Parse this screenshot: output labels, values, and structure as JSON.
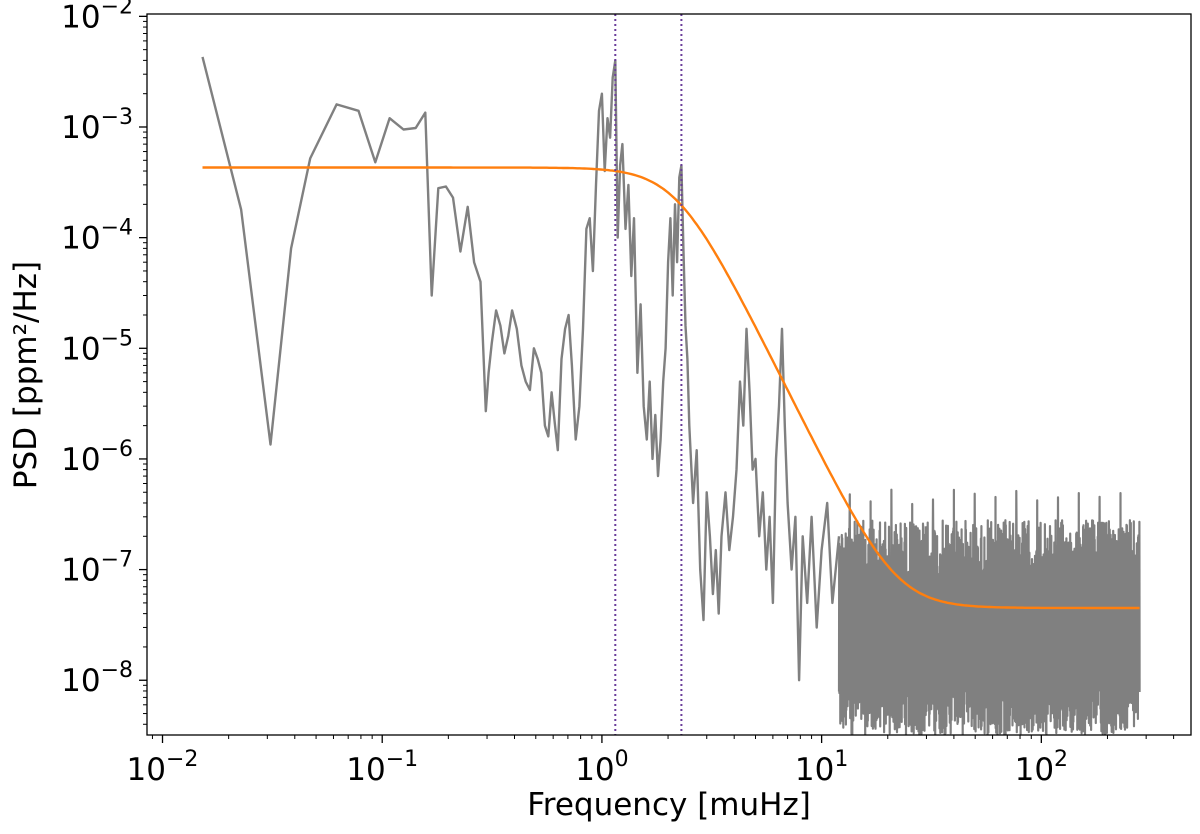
{
  "chart_data": {
    "type": "line",
    "x_scale": "log",
    "y_scale": "log",
    "xlabel": "Frequency [muHz]",
    "ylabel": "PSD [ppm²/Hz]",
    "xlim": [
      0.0085,
      480
    ],
    "ylim": [
      3.2e-09,
      0.0105
    ],
    "x_ticks": [
      {
        "value": 0.01,
        "base": "10",
        "exp": "−2"
      },
      {
        "value": 0.1,
        "base": "10",
        "exp": "−1"
      },
      {
        "value": 1,
        "base": "10",
        "exp": "0"
      },
      {
        "value": 10,
        "base": "10",
        "exp": "1"
      },
      {
        "value": 100,
        "base": "10",
        "exp": "2"
      }
    ],
    "y_ticks": [
      {
        "value": 1e-08,
        "base": "10",
        "exp": "−8"
      },
      {
        "value": 1e-07,
        "base": "10",
        "exp": "−7"
      },
      {
        "value": 1e-06,
        "base": "10",
        "exp": "−6"
      },
      {
        "value": 1e-05,
        "base": "10",
        "exp": "−5"
      },
      {
        "value": 0.0001,
        "base": "10",
        "exp": "−4"
      },
      {
        "value": 0.001,
        "base": "10",
        "exp": "−3"
      },
      {
        "value": 0.01,
        "base": "10",
        "exp": "−2"
      }
    ],
    "grid": false,
    "legend": "none",
    "colors": {
      "psd": "#808080",
      "fit": "#ff7f0e",
      "markers": "#6a3d9a"
    },
    "series": [
      {
        "kind": "psd",
        "x": [
          0.0152,
          0.0228,
          0.031,
          0.0385,
          0.047,
          0.062,
          0.078,
          0.093,
          0.108,
          0.125,
          0.142,
          0.157,
          0.168,
          0.18,
          0.195,
          0.21,
          0.227,
          0.245,
          0.262,
          0.28,
          0.296,
          0.305,
          0.315,
          0.33,
          0.345,
          0.36,
          0.375,
          0.39,
          0.41,
          0.43,
          0.45,
          0.47,
          0.49,
          0.51,
          0.53,
          0.55,
          0.57,
          0.59,
          0.61,
          0.63,
          0.655,
          0.68,
          0.705,
          0.73,
          0.76,
          0.79,
          0.82,
          0.85,
          0.88,
          0.91,
          0.94,
          0.97,
          1.0,
          1.03,
          1.06,
          1.09,
          1.12,
          1.15,
          1.18,
          1.21,
          1.24,
          1.28,
          1.32,
          1.36,
          1.4,
          1.45,
          1.5,
          1.55,
          1.6,
          1.65,
          1.7,
          1.75,
          1.8,
          1.85,
          1.9,
          1.95,
          2.0,
          2.05,
          2.1,
          2.15,
          2.2,
          2.25,
          2.3,
          2.35,
          2.4,
          2.45,
          2.5,
          2.6,
          2.7,
          2.8,
          2.9,
          3.0,
          3.1,
          3.2,
          3.3,
          3.4,
          3.5,
          3.65,
          3.8,
          3.95,
          4.1,
          4.25,
          4.4,
          4.55,
          4.7,
          4.85,
          5.0,
          5.2,
          5.4,
          5.6,
          5.8,
          6.0,
          6.2,
          6.4,
          6.6,
          6.8,
          7.0,
          7.3,
          7.6,
          7.9,
          8.2,
          8.6,
          9.0,
          9.5,
          10.0,
          10.6,
          11.2,
          12.0
        ],
        "y": [
          0.0043,
          0.00018,
          1.35e-06,
          8e-05,
          0.00052,
          0.0016,
          0.0014,
          0.00048,
          0.0012,
          0.00095,
          0.00098,
          0.00135,
          3e-05,
          0.00028,
          0.00029,
          0.00023,
          7.5e-05,
          0.00019,
          6e-05,
          4e-05,
          2.7e-06,
          6e-06,
          1.1e-05,
          2.2e-05,
          1.6e-05,
          9e-06,
          1.3e-05,
          2.2e-05,
          1.5e-05,
          7e-06,
          5e-06,
          4.2e-06,
          1e-05,
          8e-06,
          6e-06,
          2e-06,
          1.6e-06,
          4e-06,
          2.1e-06,
          1.2e-06,
          8e-06,
          1.5e-05,
          2e-05,
          7e-06,
          1.5e-06,
          3e-06,
          1.5e-05,
          0.00012,
          0.00015,
          5e-05,
          0.0003,
          0.0014,
          0.002,
          0.0004,
          0.0012,
          0.0008,
          0.0028,
          0.004,
          0.0001,
          0.00045,
          0.0007,
          0.00012,
          0.0003,
          4.5e-05,
          0.00015,
          6e-06,
          2.5e-05,
          3e-06,
          1.5e-06,
          5e-06,
          1e-06,
          2.5e-06,
          7e-07,
          1.5e-06,
          5e-06,
          1e-05,
          6e-05,
          0.00015,
          3e-05,
          0.0002,
          6e-05,
          0.00035,
          0.00045,
          8e-05,
          1.6e-05,
          8e-06,
          2e-06,
          4e-07,
          1.2e-06,
          1e-07,
          3.5e-08,
          5e-07,
          2e-07,
          6e-08,
          1.5e-07,
          4e-08,
          2e-07,
          5e-07,
          1.5e-07,
          3e-07,
          8e-07,
          5e-06,
          2e-06,
          1.5e-05,
          4e-06,
          8e-07,
          1e-06,
          2e-07,
          5e-07,
          1e-07,
          3e-07,
          5e-08,
          1e-06,
          3e-06,
          1.5e-05,
          2e-06,
          4e-07,
          1e-07,
          3e-07,
          1e-08,
          2e-07,
          5e-08,
          3e-07,
          3e-08,
          1.5e-07,
          4e-07,
          5e-08,
          2e-07
        ]
      },
      {
        "kind": "psd_noise_band",
        "x_range": [
          12,
          280
        ],
        "y_low": 3.2e-09,
        "y_high": 2.8e-07,
        "y_peak": 5.5e-07
      },
      {
        "kind": "fit",
        "model": "harvey",
        "P0": 0.00043,
        "fc": 2.2,
        "slope": 4,
        "white": 4.5e-08,
        "x_range": [
          0.0152,
          280
        ]
      }
    ],
    "vlines": [
      1.15,
      2.3
    ]
  }
}
